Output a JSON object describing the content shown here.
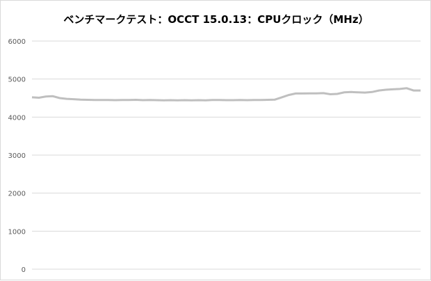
{
  "chart_data": {
    "type": "line",
    "title": "ベンチマークテスト：OCCT 15.0.13：CPUクロック（MHz）",
    "xlabel": "",
    "ylabel": "",
    "ylim": [
      0,
      6000
    ],
    "yticks": [
      "0",
      "1000",
      "2000",
      "3000",
      "4000",
      "5000",
      "6000"
    ],
    "grid": true,
    "legend": "none",
    "line_color": "#bfbfbf",
    "series": [
      {
        "values": [
          4520,
          4510,
          4540,
          4550,
          4500,
          4480,
          4470,
          4460,
          4455,
          4450,
          4450,
          4450,
          4445,
          4450,
          4450,
          4455,
          4445,
          4450,
          4445,
          4440,
          4445,
          4440,
          4445,
          4440,
          4445,
          4440,
          4450,
          4450,
          4445,
          4445,
          4450,
          4445,
          4450,
          4450,
          4455,
          4460,
          4520,
          4580,
          4620,
          4620,
          4625,
          4625,
          4630,
          4600,
          4610,
          4650,
          4660,
          4650,
          4645,
          4660,
          4700,
          4720,
          4730,
          4740,
          4760,
          4700,
          4700
        ]
      }
    ]
  }
}
